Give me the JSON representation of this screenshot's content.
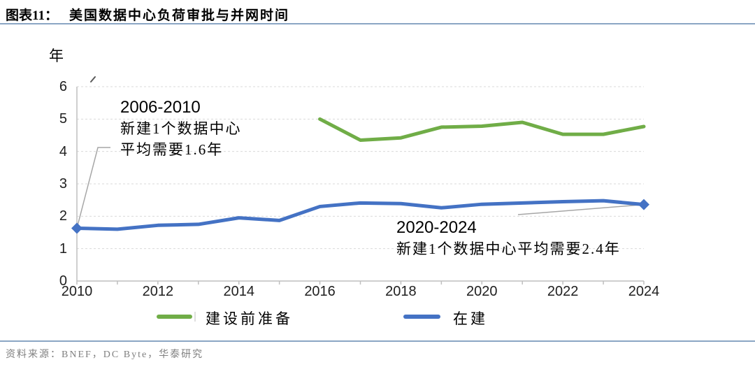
{
  "page": {
    "figure_label": "图表11：",
    "figure_title": "美国数据中心负荷审批与并网时间"
  },
  "chart_data": {
    "type": "line",
    "title": "美国数据中心负荷审批与并网时间",
    "y_unit": "年",
    "ylim": [
      0,
      6
    ],
    "yticks": [
      0,
      1,
      2,
      3,
      4,
      5,
      6
    ],
    "xticks_labeled": [
      2010,
      2012,
      2014,
      2016,
      2018,
      2020,
      2022,
      2024
    ],
    "grid": "horizontal-dashed",
    "legend_position": "bottom-center",
    "series": [
      {
        "name": "建设前准备",
        "color": "#70AD47",
        "x": [
          2016,
          2017,
          2018,
          2019,
          2020,
          2021,
          2022,
          2023,
          2024
        ],
        "values": [
          5.0,
          4.35,
          4.42,
          4.75,
          4.78,
          4.9,
          4.53,
          4.53,
          4.77
        ]
      },
      {
        "name": "在建",
        "color": "#4472C4",
        "marker": "diamond-endpoints",
        "x": [
          2010,
          2011,
          2012,
          2013,
          2014,
          2015,
          2016,
          2017,
          2018,
          2019,
          2020,
          2021,
          2022,
          2023,
          2024
        ],
        "values": [
          1.63,
          1.6,
          1.72,
          1.75,
          1.95,
          1.87,
          2.3,
          2.41,
          2.39,
          2.26,
          2.37,
          2.41,
          2.45,
          2.48,
          2.36
        ]
      }
    ],
    "annotations": [
      {
        "lines": [
          "2006-2010",
          "新建1个数据中心",
          "平均需要1.6年"
        ],
        "anchor": {
          "year": 2010,
          "value": 1.63
        }
      },
      {
        "lines": [
          "2020-2024",
          "新建1个数据中心平均需要2.4年"
        ],
        "anchor": {
          "year": 2024,
          "value": 2.36
        }
      }
    ]
  },
  "colors": {
    "grid": "#D9D9D9",
    "axis": "#BFBFBF",
    "leader_line": "#A6A6A6",
    "separator": "#8BA6C4",
    "source_text": "#808080"
  },
  "footer": {
    "source": "资料来源：BNEF，DC Byte，华泰研究"
  }
}
